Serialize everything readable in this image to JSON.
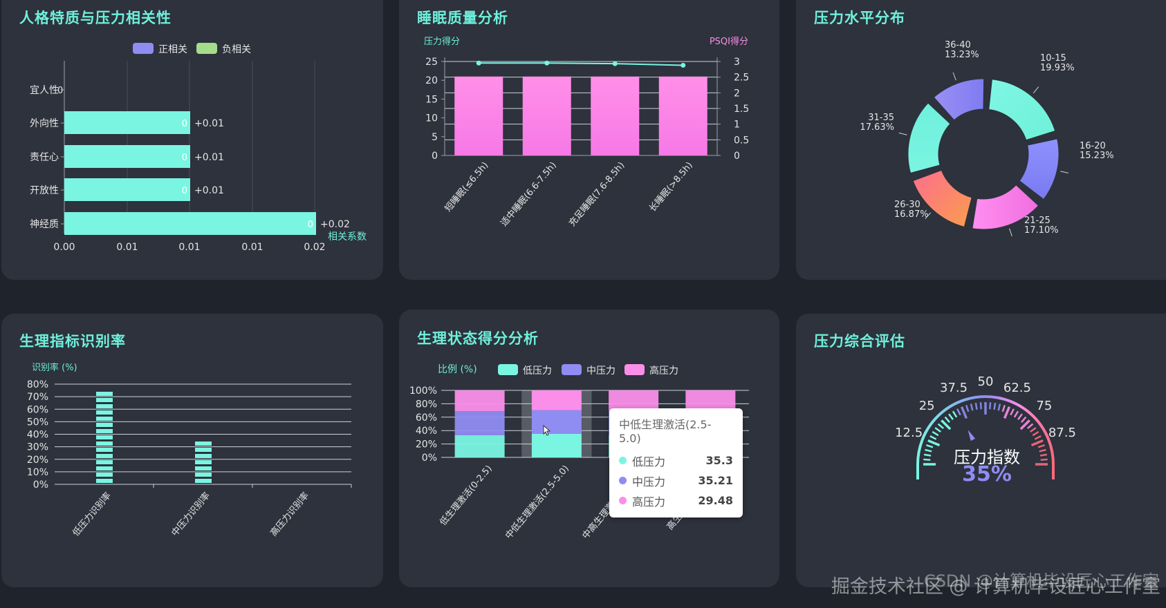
{
  "colors": {
    "teal": "#7af5e2",
    "purple": "#8f8cf2",
    "pink": "#fb8ee9",
    "green": "#a5dc8c",
    "title": "#6ff0dc",
    "orange": "#fb8d6b"
  },
  "panels": [
    {
      "id": "p1",
      "title": "人格特质与压力相关性"
    },
    {
      "id": "p2",
      "title": "睡眠质量分析"
    },
    {
      "id": "p3",
      "title": "压力水平分布"
    },
    {
      "id": "p4",
      "title": "生理指标识别率"
    },
    {
      "id": "p5",
      "title": "生理状态得分分析"
    },
    {
      "id": "p6",
      "title": "压力综合评估"
    }
  ],
  "chart_data": [
    {
      "id": "personality",
      "type": "bar",
      "orientation": "horizontal",
      "legend": [
        "正相关",
        "负相关"
      ],
      "categories": [
        "宜人性",
        "外向性",
        "责任心",
        "开放性",
        "神经质"
      ],
      "series": [
        {
          "name": "正相关",
          "values": [
            0,
            0.01,
            0.01,
            0.01,
            0.02
          ]
        }
      ],
      "inner_labels": [
        "0",
        "0",
        "0",
        "0",
        "0"
      ],
      "end_labels": [
        "0",
        "+0.01",
        "+0.01",
        "+0.01",
        "+0.02"
      ],
      "x_ticks": [
        "0.00",
        "0.01",
        "0.01",
        "0.01",
        "0.02"
      ],
      "xlabel": "相关系数",
      "xlim": [
        0,
        0.02
      ],
      "grid": true
    },
    {
      "id": "sleep",
      "type": "bar",
      "categories": [
        "短睡眠(≤6.5h)",
        "适中睡眠(6.6-7.5h)",
        "充足睡眠(7.6-8.5h)",
        "长睡眠(>8.5h)"
      ],
      "series": [
        {
          "name": "压力得分",
          "type": "bar",
          "values": [
            21,
            21,
            21,
            21
          ]
        },
        {
          "name": "PSQI得分",
          "type": "line",
          "values": [
            2.95,
            2.95,
            2.93,
            2.88
          ]
        }
      ],
      "ylabel": "压力得分",
      "y2label": "PSQI得分",
      "y_ticks": [
        "0",
        "5",
        "10",
        "15",
        "20",
        "25"
      ],
      "y2_ticks": [
        "0",
        "0.5",
        "1",
        "1.5",
        "2",
        "2.5",
        "3"
      ],
      "ylim": [
        0,
        25
      ],
      "y2lim": [
        0,
        3
      ]
    },
    {
      "id": "stress_dist",
      "type": "pie",
      "labels": [
        "10-15",
        "16-20",
        "21-25",
        "26-30",
        "31-35",
        "36-40"
      ],
      "values": [
        19.93,
        15.23,
        17.1,
        16.87,
        17.63,
        13.23
      ],
      "value_labels": [
        "19.93%",
        "15.23%",
        "17.10%",
        "16.87%",
        "17.63%",
        "13.23%"
      ]
    },
    {
      "id": "physio_rate",
      "type": "bar",
      "categories": [
        "低压力识别率",
        "中压力识别率",
        "高压力识别率"
      ],
      "values": [
        75,
        34,
        0
      ],
      "ylabel": "识别率 (%)",
      "y_ticks": [
        "0%",
        "10%",
        "20%",
        "30%",
        "40%",
        "50%",
        "60%",
        "70%",
        "80%"
      ],
      "ylim": [
        0,
        80
      ]
    },
    {
      "id": "physio_state",
      "type": "bar",
      "stacked": true,
      "categories": [
        "低生理激活(0-2.5)",
        "中低生理激活(2.5-5.0)",
        "中高生理激活(5.0-7.5)",
        "高生理激活(7.5-10)"
      ],
      "series": [
        {
          "name": "低压力",
          "values": [
            33,
            35.3,
            33,
            33
          ]
        },
        {
          "name": "中压力",
          "values": [
            36,
            35.21,
            36,
            36
          ]
        },
        {
          "name": "高压力",
          "values": [
            31,
            29.48,
            31,
            31
          ]
        }
      ],
      "ylabel": "比例 (%)",
      "y_ticks": [
        "0%",
        "20%",
        "40%",
        "60%",
        "80%",
        "100%"
      ],
      "ylim": [
        0,
        100
      ],
      "tooltip": {
        "title": "中低生理激活(2.5-5.0)",
        "rows": [
          {
            "name": "低压力",
            "value": "35.3"
          },
          {
            "name": "中压力",
            "value": "35.21"
          },
          {
            "name": "高压力",
            "value": "29.48"
          }
        ]
      }
    },
    {
      "id": "gauge",
      "type": "gauge",
      "value": 35,
      "min": 0,
      "max": 100,
      "ticks": [
        "12.5",
        "25",
        "37.5",
        "50",
        "62.5",
        "75",
        "87.5"
      ],
      "name": "压力指数",
      "display": "35%"
    }
  ],
  "watermark": {
    "line1": "掘金技术社区 @ 计算机毕设匠心工作室",
    "line2": "CSDN @计算机毕设匠心工作室"
  }
}
